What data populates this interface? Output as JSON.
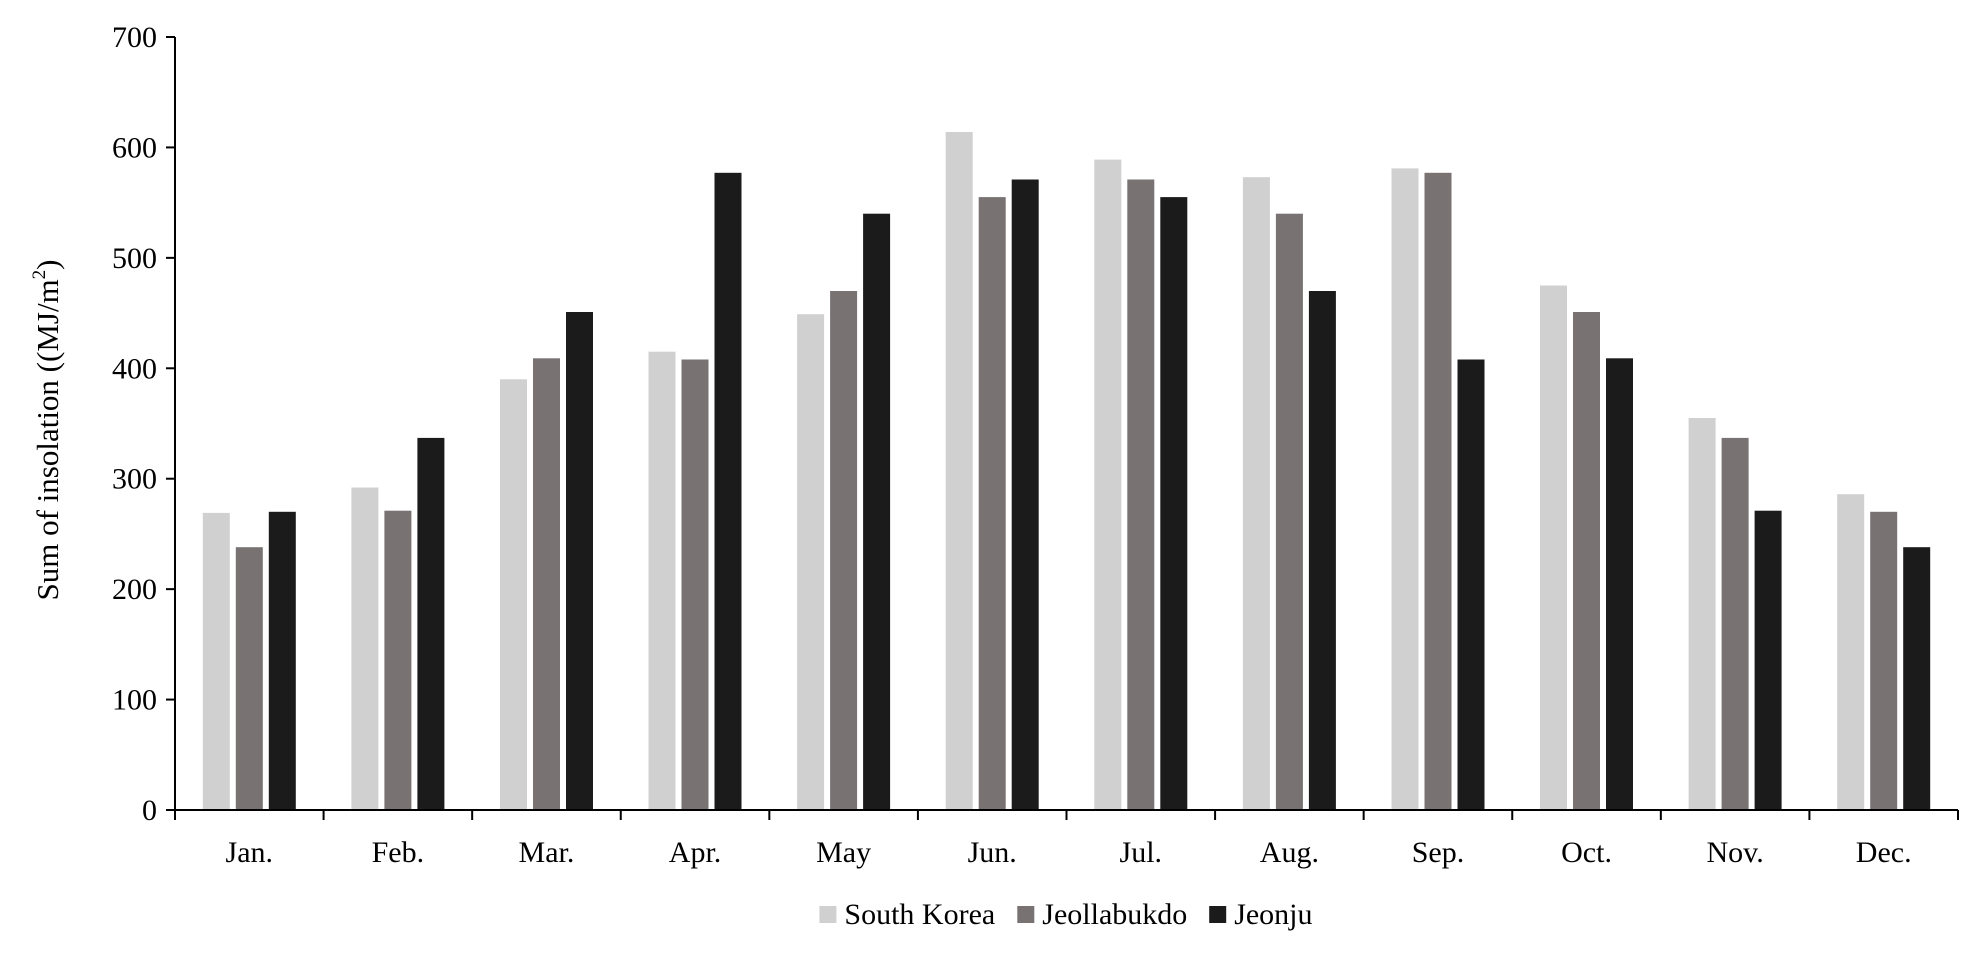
{
  "chart_data": {
    "type": "bar",
    "ylabel_main": "Sum of insolation ((MJ/m",
    "ylabel_sup": "2",
    "ylabel_end": ")",
    "ylim": [
      0,
      700
    ],
    "yticks": [
      0,
      100,
      200,
      300,
      400,
      500,
      600,
      700
    ],
    "categories": [
      "Jan.",
      "Feb.",
      "Mar.",
      "Apr.",
      "May",
      "Jun.",
      "Jul.",
      "Aug.",
      "Sep.",
      "Oct.",
      "Nov.",
      "Dec."
    ],
    "series": [
      {
        "name": "South Korea",
        "color": "#d0d0d0",
        "values": [
          269,
          292,
          390,
          415,
          449,
          614,
          589,
          573,
          581,
          475,
          355,
          286
        ]
      },
      {
        "name": "Jeollabukdo",
        "color": "#787272",
        "values": [
          238,
          271,
          409,
          408,
          470,
          555,
          571,
          540,
          577,
          451,
          337,
          270
        ]
      },
      {
        "name": "Jeonju",
        "color": "#1b1b1b",
        "values": [
          270,
          337,
          451,
          577,
          540,
          571,
          555,
          470,
          408,
          409,
          271,
          238
        ]
      }
    ],
    "legend_position": "bottom-center",
    "grid": false
  }
}
